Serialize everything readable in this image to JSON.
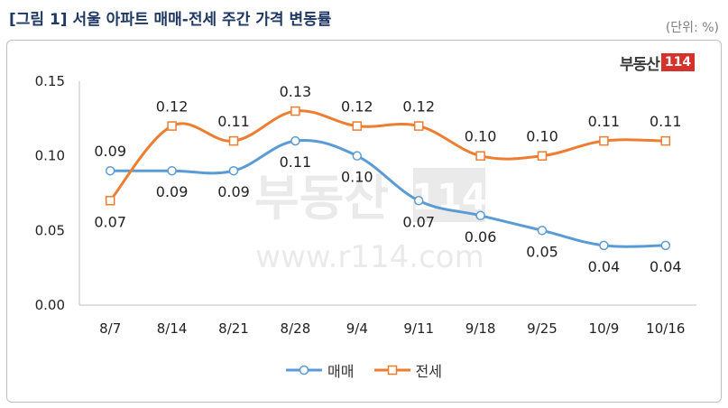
{
  "title": "[그림 1] 서울 아파트 매매-전세 주간 가격 변동률",
  "unit_label": "(단위: %)",
  "logo": {
    "text": "부동산",
    "badge": "114"
  },
  "watermark": {
    "logo_text": "부동산",
    "logo_badge": "114",
    "url": "www.r114.com"
  },
  "colors": {
    "sale": "#5b9bd5",
    "jeonse": "#ed7d31",
    "title": "#1f3864"
  },
  "chart_data": {
    "type": "line",
    "categories": [
      "8/7",
      "8/14",
      "8/21",
      "8/28",
      "9/4",
      "9/11",
      "9/18",
      "9/25",
      "10/9",
      "10/16"
    ],
    "series": [
      {
        "name": "매매",
        "values": [
          0.09,
          0.09,
          0.09,
          0.11,
          0.1,
          0.07,
          0.06,
          0.05,
          0.04,
          0.04
        ],
        "labels": [
          "0.09",
          "0.09",
          "0.09",
          "0.11",
          "0.10",
          "0.07",
          "0.06",
          "0.05",
          "0.04",
          "0.04"
        ]
      },
      {
        "name": "전세",
        "values": [
          0.07,
          0.12,
          0.11,
          0.13,
          0.12,
          0.12,
          0.1,
          0.1,
          0.11,
          0.11
        ],
        "labels": [
          "0.07",
          "0.12",
          "0.11",
          "0.13",
          "0.12",
          "0.12",
          "0.10",
          "0.10",
          "0.11",
          "0.11"
        ]
      }
    ],
    "ylim": [
      0,
      0.15
    ],
    "yticks": [
      "0.00",
      "0.05",
      "0.10",
      "0.15"
    ],
    "grid": false,
    "legend_position": "bottom"
  }
}
